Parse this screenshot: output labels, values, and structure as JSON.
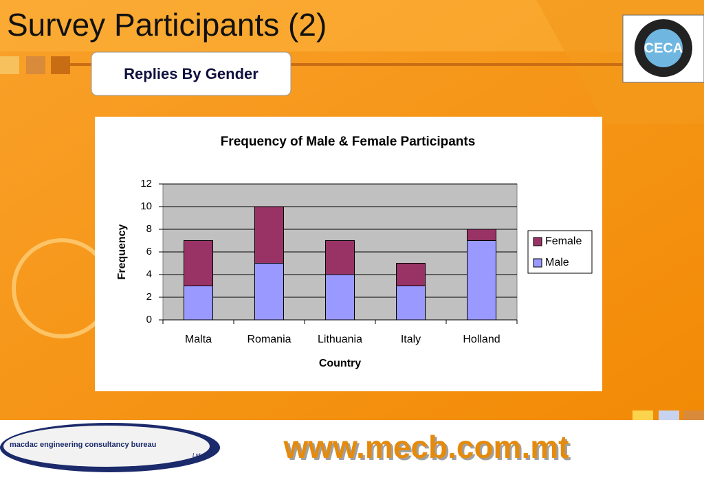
{
  "slide": {
    "title": "Survey Participants (2)",
    "subtitle": "Replies By Gender",
    "url": "www.mecb.com.mt",
    "company": "macdac engineering consultancy bureau",
    "company_suffix": "Ltd.",
    "logo": "CECA"
  },
  "chart_data": {
    "type": "bar",
    "stacked": true,
    "title": "Frequency of Male & Female Participants",
    "x_label": "Country",
    "y_label": "Frequency",
    "categories": [
      "Malta",
      "Romania",
      "Lithuania",
      "Italy",
      "Holland"
    ],
    "series": [
      {
        "name": "Male",
        "color": "#9999ff",
        "values": [
          3,
          5,
          4,
          3,
          7
        ]
      },
      {
        "name": "Female",
        "color": "#993366",
        "values": [
          4,
          5,
          3,
          2,
          1
        ]
      }
    ],
    "ylim": [
      0,
      12
    ],
    "yticks": [
      0,
      2,
      4,
      6,
      8,
      10,
      12
    ],
    "grid": true,
    "legend": "right"
  }
}
